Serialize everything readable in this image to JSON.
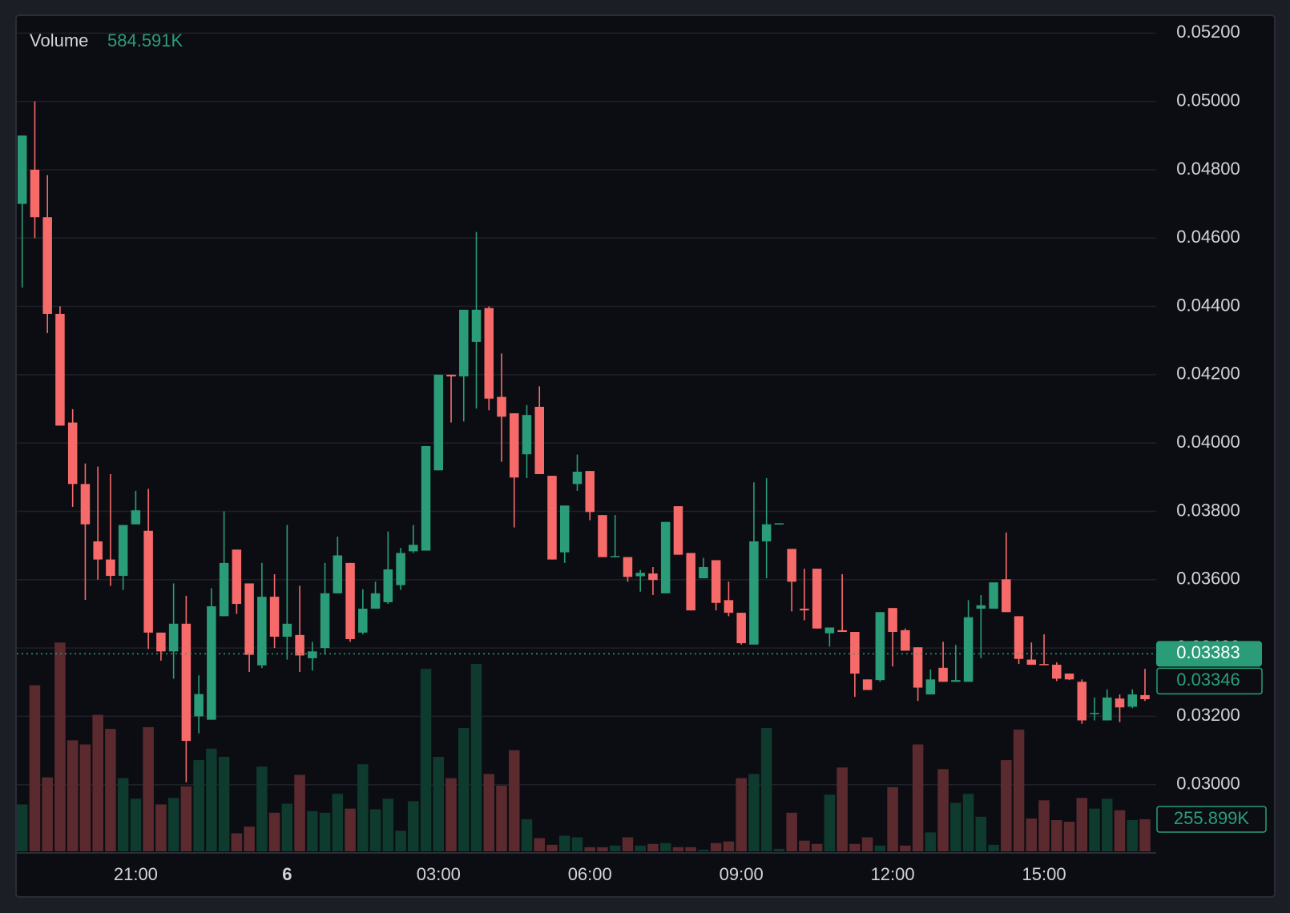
{
  "chart_data": {
    "type": "candlestick",
    "legend": {
      "label": "Volume",
      "value": "584.591K"
    },
    "categories": [
      null,
      null,
      null,
      null,
      null,
      null,
      null,
      null,
      null,
      "21:00",
      null,
      null,
      null,
      null,
      null,
      null,
      null,
      null,
      null,
      null,
      null,
      "6",
      null,
      null,
      null,
      null,
      null,
      null,
      null,
      null,
      null,
      null,
      null,
      "03:00",
      null,
      null,
      null,
      null,
      null,
      null,
      null,
      null,
      null,
      null,
      null,
      "06:00",
      null,
      null,
      null,
      null,
      null,
      null,
      null,
      null,
      null,
      null,
      null,
      "09:00",
      null,
      null,
      null,
      null,
      null,
      null,
      null,
      null,
      null,
      null,
      null,
      "12:00",
      null,
      null,
      null,
      null,
      null,
      null,
      null,
      null,
      null,
      null,
      null,
      "15:00",
      null,
      null,
      null,
      null,
      null,
      null,
      null,
      null
    ],
    "open": [
      0.047,
      0.048,
      0.04661,
      0.04378,
      0.0406,
      0.0388,
      0.03712,
      0.03659,
      0.03611,
      0.03762,
      0.03743,
      0.03445,
      0.0339,
      0.03471,
      0.032,
      0.0319,
      0.03493,
      0.03688,
      0.03589,
      0.03349,
      0.0355,
      0.03433,
      0.03438,
      0.0337,
      0.034,
      0.0356,
      0.03649,
      0.03445,
      0.03515,
      0.03534,
      0.03584,
      0.03683,
      0.03685,
      0.0392,
      0.042,
      0.04195,
      0.04296,
      0.04395,
      0.04135,
      0.04087,
      0.03967,
      0.04106,
      0.03904,
      0.0368,
      0.0388,
      0.03918,
      0.03789,
      0.03666,
      0.03666,
      0.0361,
      0.03618,
      0.0356,
      0.03815,
      0.03678,
      0.03604,
      0.03657,
      0.0354,
      0.03503,
      0.0341,
      0.03712,
      0.03762,
      0.0369,
      0.03515,
      0.03632,
      0.03443,
      0.03452,
      0.03447,
      0.03308,
      0.03306,
      0.03517,
      0.03452,
      0.03402,
      0.03264,
      0.03342,
      0.03301,
      0.03301,
      0.03515,
      0.03515,
      0.03601,
      0.03493,
      0.03366,
      0.03353,
      0.03351,
      0.03325,
      0.03301,
      0.03207,
      0.03188,
      0.03252,
      0.03228,
      0.03262
    ],
    "high": [
      0.049,
      0.05,
      0.04784,
      0.044,
      0.04099,
      0.0394,
      0.03931,
      0.03909,
      0.0376,
      0.0386,
      0.03866,
      0.03445,
      0.03589,
      0.03553,
      0.0332,
      0.03575,
      0.038,
      0.03688,
      0.03589,
      0.03649,
      0.03616,
      0.0376,
      0.03582,
      0.03418,
      0.03649,
      0.03726,
      0.03649,
      0.03572,
      0.03594,
      0.03741,
      0.03693,
      0.0376,
      0.03991,
      0.042,
      0.042,
      0.0439,
      0.04618,
      0.044,
      0.04262,
      0.04087,
      0.04111,
      0.04166,
      0.03904,
      0.03817,
      0.03966,
      0.03918,
      0.03789,
      0.03789,
      0.03666,
      0.03628,
      0.03637,
      0.03769,
      0.03815,
      0.03678,
      0.03664,
      0.03657,
      0.03594,
      0.03503,
      0.03885,
      0.03897,
      0.03765,
      0.0369,
      0.03632,
      0.03632,
      0.0346,
      0.03616,
      0.03447,
      0.03308,
      0.03505,
      0.03517,
      0.03457,
      0.03402,
      0.03337,
      0.03418,
      0.03409,
      0.0354,
      0.03555,
      0.03592,
      0.03738,
      0.03493,
      0.03416,
      0.0344,
      0.03358,
      0.03325,
      0.03308,
      0.03255,
      0.03279,
      0.03264,
      0.03279,
      0.03339
    ],
    "low": [
      0.04455,
      0.046,
      0.04322,
      0.04051,
      0.03813,
      0.03541,
      0.036,
      0.03582,
      0.0357,
      0.03762,
      0.03397,
      0.03363,
      0.0331,
      0.03007,
      0.0315,
      0.0319,
      0.03493,
      0.035,
      0.0333,
      0.03341,
      0.034,
      0.03366,
      0.0333,
      0.03334,
      0.0338,
      0.0356,
      0.03418,
      0.0344,
      0.03515,
      0.03529,
      0.0357,
      0.03678,
      0.03685,
      0.0392,
      0.0406,
      0.04063,
      0.04101,
      0.04096,
      0.03945,
      0.03753,
      0.03897,
      0.03909,
      0.03659,
      0.03649,
      0.0386,
      0.03774,
      0.03666,
      0.03666,
      0.03594,
      0.03565,
      0.03555,
      0.0356,
      0.03673,
      0.0351,
      0.03604,
      0.0351,
      0.03493,
      0.0341,
      0.0341,
      0.03604,
      0.03762,
      0.03507,
      0.03481,
      0.03457,
      0.03404,
      0.03447,
      0.03257,
      0.03277,
      0.03301,
      0.03346,
      0.03392,
      0.03245,
      0.03264,
      0.03301,
      0.03301,
      0.03301,
      0.0337,
      0.03515,
      0.03505,
      0.03353,
      0.03351,
      0.03351,
      0.03303,
      0.03306,
      0.03178,
      0.03188,
      0.03188,
      0.03183,
      0.03224,
      0.03245
    ],
    "close": [
      0.049,
      0.04661,
      0.04378,
      0.04051,
      0.0388,
      0.03762,
      0.03659,
      0.03611,
      0.0376,
      0.03803,
      0.03445,
      0.0339,
      0.03471,
      0.03128,
      0.03265,
      0.03522,
      0.03649,
      0.03529,
      0.0338,
      0.0355,
      0.03433,
      0.03471,
      0.03378,
      0.0339,
      0.0356,
      0.03671,
      0.03426,
      0.03515,
      0.0356,
      0.0363,
      0.03678,
      0.03702,
      0.03991,
      0.042,
      0.04195,
      0.0439,
      0.0439,
      0.0413,
      0.04077,
      0.03899,
      0.04082,
      0.03909,
      0.03659,
      0.03817,
      0.03916,
      0.03798,
      0.03666,
      0.03669,
      0.03608,
      0.0362,
      0.03599,
      0.03769,
      0.03673,
      0.0351,
      0.03637,
      0.03532,
      0.03503,
      0.03414,
      0.03712,
      0.03762,
      0.03765,
      0.03594,
      0.0351,
      0.03457,
      0.0346,
      0.03447,
      0.03325,
      0.03277,
      0.03505,
      0.03447,
      0.03392,
      0.03284,
      0.03308,
      0.03301,
      0.03306,
      0.0349,
      0.03525,
      0.03592,
      0.03505,
      0.03368,
      0.03351,
      0.03351,
      0.0331,
      0.03308,
      0.03188,
      0.0321,
      0.03255,
      0.03226,
      0.03264,
      0.0325
    ],
    "volume": [
      374,
      1325,
      590,
      1666,
      886,
      853,
      1089,
      977,
      584,
      420,
      991,
      374,
      426,
      518,
      728,
      820,
      754,
      144,
      197,
      676,
      308,
      380,
      610,
      321,
      308,
      459,
      341,
      695,
      335,
      420,
      164,
      400,
      1456,
      754,
      584,
      984,
      1496,
      617,
      525,
      807,
      256,
      105,
      52,
      125,
      112,
      33,
      33,
      46,
      112,
      46,
      59,
      66,
      33,
      33,
      13,
      66,
      79,
      584,
      617,
      984,
      20,
      308,
      85,
      59,
      453,
      669,
      59,
      112,
      46,
      512,
      46,
      853,
      151,
      656,
      387,
      459,
      276,
      52,
      728,
      971,
      262,
      407,
      249,
      236,
      426,
      341,
      420,
      328,
      249,
      255.899
    ],
    "volume_lim": [
      0,
      1700
    ],
    "volume_marker": {
      "value": 255.899,
      "label": "255.899K"
    },
    "up_color": "#2a9d78",
    "down_color": "#f76a6a",
    "volume_up_color": "#0f3a2e",
    "volume_down_color": "#5b2a2f",
    "ylim": [
      0.028,
      0.0525
    ],
    "yticks": [
      {
        "value": 0.03,
        "label": "0.03000"
      },
      {
        "value": 0.032,
        "label": "0.03200"
      },
      {
        "value": 0.034,
        "label": "0.03400"
      },
      {
        "value": 0.036,
        "label": "0.03600"
      },
      {
        "value": 0.038,
        "label": "0.03800"
      },
      {
        "value": 0.04,
        "label": "0.04000"
      },
      {
        "value": 0.042,
        "label": "0.04200"
      },
      {
        "value": 0.044,
        "label": "0.04400"
      },
      {
        "value": 0.046,
        "label": "0.04600"
      },
      {
        "value": 0.048,
        "label": "0.04800"
      },
      {
        "value": 0.05,
        "label": "0.05000"
      },
      {
        "value": 0.052,
        "label": "0.05200"
      }
    ],
    "price_markers": [
      {
        "value": 0.03383,
        "label": "0.03383"
      },
      {
        "value": 0.03346,
        "label": "0.03346"
      }
    ],
    "grid": true
  }
}
